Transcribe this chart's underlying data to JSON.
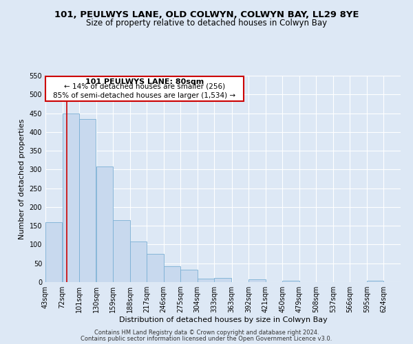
{
  "title": "101, PEULWYS LANE, OLD COLWYN, COLWYN BAY, LL29 8YE",
  "subtitle": "Size of property relative to detached houses in Colwyn Bay",
  "xlabel": "Distribution of detached houses by size in Colwyn Bay",
  "ylabel": "Number of detached properties",
  "bar_color": "#c8d9ee",
  "bar_edge_color": "#7aafd4",
  "vline_x": 80,
  "vline_color": "#cc0000",
  "annotation_title": "101 PEULWYS LANE: 80sqm",
  "annotation_line1": "← 14% of detached houses are smaller (256)",
  "annotation_line2": "85% of semi-detached houses are larger (1,534) →",
  "annotation_box_color": "#ffffff",
  "annotation_box_edge": "#cc0000",
  "bins_left": [
    43,
    72,
    101,
    130,
    159,
    188,
    217,
    246,
    275,
    304,
    333,
    363,
    392,
    421,
    450,
    479,
    508,
    537,
    566,
    595
  ],
  "bin_width": 29,
  "values": [
    160,
    450,
    435,
    308,
    165,
    108,
    75,
    43,
    33,
    10,
    11,
    0,
    8,
    0,
    3,
    0,
    0,
    0,
    0,
    4
  ],
  "xlim_left": 43,
  "xlim_right": 653,
  "ylim_top": 550,
  "yticks": [
    0,
    50,
    100,
    150,
    200,
    250,
    300,
    350,
    400,
    450,
    500,
    550
  ],
  "xtick_labels": [
    "43sqm",
    "72sqm",
    "101sqm",
    "130sqm",
    "159sqm",
    "188sqm",
    "217sqm",
    "246sqm",
    "275sqm",
    "304sqm",
    "333sqm",
    "363sqm",
    "392sqm",
    "421sqm",
    "450sqm",
    "479sqm",
    "508sqm",
    "537sqm",
    "566sqm",
    "595sqm",
    "624sqm"
  ],
  "footer1": "Contains HM Land Registry data © Crown copyright and database right 2024.",
  "footer2": "Contains public sector information licensed under the Open Government Licence v3.0.",
  "background_color": "#dde8f5",
  "plot_bg_color": "#dde8f5",
  "grid_color": "#ffffff",
  "title_fontsize": 9.5,
  "subtitle_fontsize": 8.5,
  "axis_label_fontsize": 8,
  "tick_fontsize": 7,
  "footer_fontsize": 6
}
